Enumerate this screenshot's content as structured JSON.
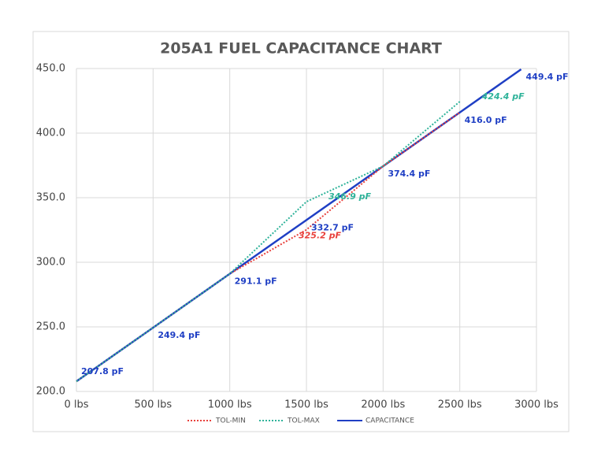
{
  "chart_data": {
    "type": "line",
    "title": "205A1 FUEL CAPACITANCE CHART",
    "x": [
      0,
      500,
      1000,
      1500,
      2000,
      2500,
      2900
    ],
    "series": [
      {
        "name": "TOL-MIN",
        "color": "#e8413c",
        "style": "dotted",
        "values": [
          207.8,
          249.4,
          291.1,
          325.2,
          374.4,
          416.0,
          null
        ],
        "value_labels": [
          null,
          null,
          null,
          "325.2 pF",
          null,
          null,
          null
        ]
      },
      {
        "name": "TOL-MAX",
        "color": "#2fb39a",
        "style": "dotted",
        "values": [
          207.8,
          249.4,
          291.1,
          346.9,
          374.4,
          424.4,
          null
        ],
        "value_labels": [
          null,
          null,
          null,
          "346.9 pF",
          null,
          "424.4 pF",
          null
        ]
      },
      {
        "name": "CAPACITANCE",
        "color": "#1f3fc4",
        "style": "solid",
        "values": [
          207.8,
          249.4,
          291.1,
          332.7,
          374.4,
          416.0,
          449.4
        ],
        "value_labels": [
          "207.8 pF",
          "249.4 pF",
          "291.1 pF",
          "332.7 pF",
          "374.4 pF",
          "416.0 pF",
          "449.4 pF"
        ]
      }
    ],
    "xlim": [
      0,
      3000
    ],
    "xticks": [
      {
        "value": 0,
        "label": "0 lbs"
      },
      {
        "value": 500,
        "label": "500 lbs"
      },
      {
        "value": 1000,
        "label": "1000 lbs"
      },
      {
        "value": 1500,
        "label": "1500 lbs"
      },
      {
        "value": 2000,
        "label": "2000 lbs"
      },
      {
        "value": 2500,
        "label": "2500 lbs"
      },
      {
        "value": 3000,
        "label": "3000 lbs"
      }
    ],
    "ylim": [
      200,
      450
    ],
    "yticks": [
      {
        "value": 200,
        "label": "200.0"
      },
      {
        "value": 250,
        "label": "250.0"
      },
      {
        "value": 300,
        "label": "300.0"
      },
      {
        "value": 350,
        "label": "350.0"
      },
      {
        "value": 400,
        "label": "400.0"
      },
      {
        "value": 450,
        "label": "450.0"
      }
    ],
    "grid": true,
    "legend": "bottom"
  }
}
